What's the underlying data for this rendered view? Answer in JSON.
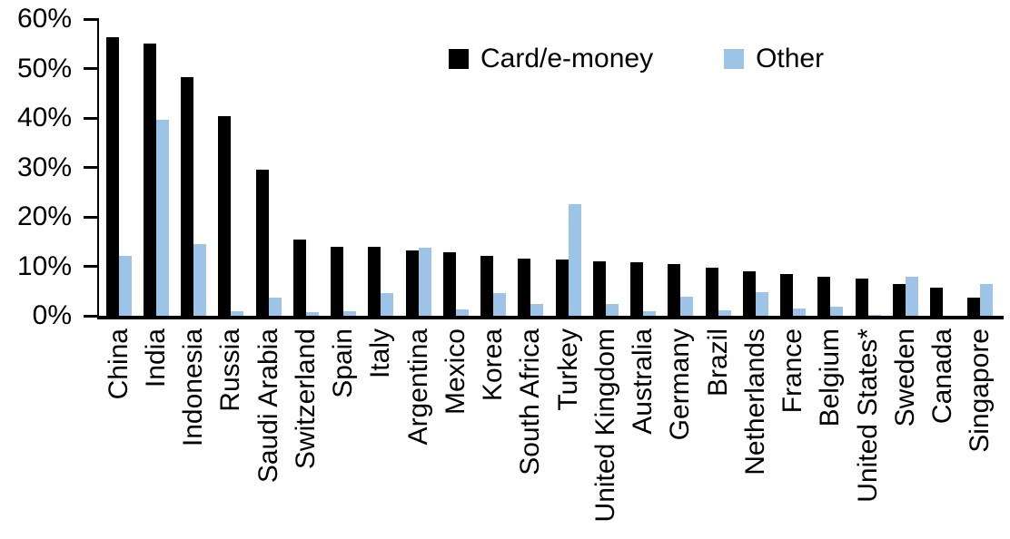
{
  "chart_data": {
    "type": "bar",
    "title": "",
    "xlabel": "",
    "ylabel": "",
    "ylim": [
      0,
      60
    ],
    "grid": false,
    "legend_position": "top-center",
    "y_tick_labels": [
      "0%",
      "10%",
      "20%",
      "30%",
      "40%",
      "50%",
      "60%"
    ],
    "y_tick_values": [
      0,
      10,
      20,
      30,
      40,
      50,
      60
    ],
    "categories": [
      "China",
      "India",
      "Indonesia",
      "Russia",
      "Saudi Arabia",
      "Switzerland",
      "Spain",
      "Italy",
      "Argentina",
      "Mexico",
      "Korea",
      "South Africa",
      "Turkey",
      "United Kingdom",
      "Australia",
      "Germany",
      "Brazil",
      "Netherlands",
      "France",
      "Belgium",
      "United States*",
      "Sweden",
      "Canada",
      "Singapore"
    ],
    "series": [
      {
        "name": "Card/e-money",
        "color": "#000000",
        "values": [
          56.3,
          55.0,
          48.2,
          40.4,
          29.6,
          15.4,
          14.0,
          13.9,
          13.3,
          12.8,
          12.2,
          11.6,
          11.4,
          11.0,
          10.8,
          10.5,
          9.8,
          9.0,
          8.5,
          7.9,
          7.6,
          6.4,
          5.7,
          3.7
        ]
      },
      {
        "name": "Other",
        "color": "#9DC3E6",
        "values": [
          12.2,
          39.7,
          14.5,
          0.9,
          3.7,
          0.7,
          1.0,
          4.5,
          13.8,
          1.3,
          4.5,
          2.4,
          22.5,
          2.4,
          0.9,
          3.9,
          1.1,
          4.7,
          1.4,
          1.9,
          0.2,
          7.9,
          0,
          6.5
        ]
      }
    ]
  },
  "legend": {
    "items": [
      {
        "label": "Card/e-money",
        "color": "#000000"
      },
      {
        "label": "Other",
        "color": "#9DC3E6"
      }
    ]
  }
}
